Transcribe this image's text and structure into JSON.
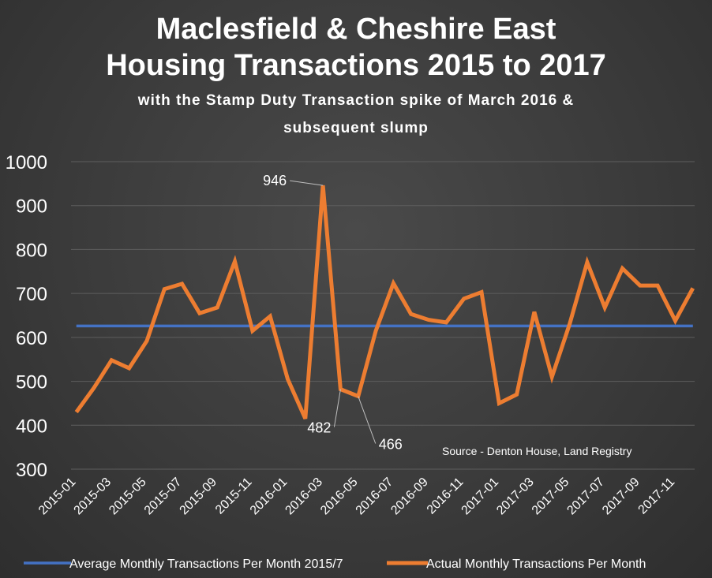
{
  "chart_data": {
    "type": "line",
    "title_line1": "Maclesfield & Cheshire East",
    "title_line2": "Housing Transactions 2015 to 2017",
    "subtitle_line1": "with the Stamp Duty Transaction spike of March 2016 &",
    "subtitle_line2": "subsequent slump",
    "source": "Source - Denton House, Land Registry",
    "ylim": [
      300,
      1000
    ],
    "y_ticks": [
      "300",
      "400",
      "500",
      "600",
      "700",
      "800",
      "900",
      "1000"
    ],
    "x_tick_labels": [
      "2015-01",
      "2015-03",
      "2015-05",
      "2015-07",
      "2015-09",
      "2015-11",
      "2016-01",
      "2016-03",
      "2016-05",
      "2016-07",
      "2016-09",
      "2016-11",
      "2017-01",
      "2017-03",
      "2017-05",
      "2017-07",
      "2017-09",
      "2017-11"
    ],
    "x": [
      "2015-01",
      "2015-02",
      "2015-03",
      "2015-04",
      "2015-05",
      "2015-06",
      "2015-07",
      "2015-08",
      "2015-09",
      "2015-10",
      "2015-11",
      "2015-12",
      "2016-01",
      "2016-02",
      "2016-03",
      "2016-04",
      "2016-05",
      "2016-06",
      "2016-07",
      "2016-08",
      "2016-09",
      "2016-10",
      "2016-11",
      "2016-12",
      "2017-01",
      "2017-02",
      "2017-03",
      "2017-04",
      "2017-05",
      "2017-06",
      "2017-07",
      "2017-08",
      "2017-09",
      "2017-10",
      "2017-11",
      "2017-12"
    ],
    "series": [
      {
        "name": "Average Monthly Transactions Per Month 2015/7",
        "color": "#4472C4",
        "values": [
          626,
          626,
          626,
          626,
          626,
          626,
          626,
          626,
          626,
          626,
          626,
          626,
          626,
          626,
          626,
          626,
          626,
          626,
          626,
          626,
          626,
          626,
          626,
          626,
          626,
          626,
          626,
          626,
          626,
          626,
          626,
          626,
          626,
          626,
          626,
          626
        ]
      },
      {
        "name": "Actual Monthly Transactions Per Month",
        "color": "#ED7D31",
        "values": [
          430,
          485,
          548,
          530,
          592,
          710,
          722,
          655,
          668,
          773,
          615,
          648,
          505,
          415,
          946,
          482,
          466,
          615,
          723,
          653,
          640,
          634,
          688,
          703,
          450,
          470,
          658,
          510,
          630,
          771,
          668,
          757,
          718,
          718,
          638,
          712
        ]
      }
    ],
    "annotations": [
      {
        "label": "946",
        "index": 14
      },
      {
        "label": "482",
        "index": 15
      },
      {
        "label": "466",
        "index": 16
      }
    ],
    "grid": true,
    "legend": "bottom"
  }
}
